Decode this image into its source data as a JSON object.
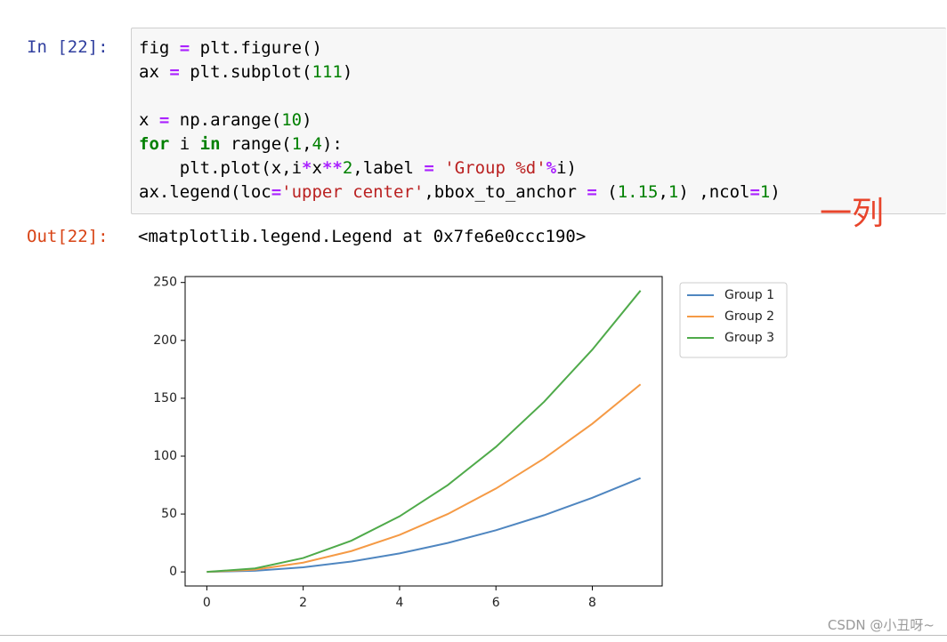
{
  "notebook": {
    "input_prompt": "In [22]:",
    "code": [
      [
        {
          "text": "fig ",
          "color": "#000000"
        },
        {
          "text": "=",
          "color": "#aa22ff",
          "weight": "bold"
        },
        {
          "text": " plt.figure()",
          "color": "#000000"
        }
      ],
      [
        {
          "text": "ax ",
          "color": "#000000"
        },
        {
          "text": "=",
          "color": "#aa22ff",
          "weight": "bold"
        },
        {
          "text": " plt.subplot(",
          "color": "#000000"
        },
        {
          "text": "111",
          "color": "#008000"
        },
        {
          "text": ")",
          "color": "#000000"
        }
      ],
      [],
      [
        {
          "text": "x ",
          "color": "#000000"
        },
        {
          "text": "=",
          "color": "#aa22ff",
          "weight": "bold"
        },
        {
          "text": " np.arange(",
          "color": "#000000"
        },
        {
          "text": "10",
          "color": "#008000"
        },
        {
          "text": ")",
          "color": "#000000"
        }
      ],
      [
        {
          "text": "for",
          "color": "#008000",
          "weight": "bold"
        },
        {
          "text": " i ",
          "color": "#000000"
        },
        {
          "text": "in",
          "color": "#008000",
          "weight": "bold"
        },
        {
          "text": " range(",
          "color": "#000000"
        },
        {
          "text": "1",
          "color": "#008000"
        },
        {
          "text": ",",
          "color": "#000000"
        },
        {
          "text": "4",
          "color": "#008000"
        },
        {
          "text": "):",
          "color": "#000000"
        }
      ],
      [
        {
          "text": "    plt.plot(x,i",
          "color": "#000000"
        },
        {
          "text": "*",
          "color": "#aa22ff",
          "weight": "bold"
        },
        {
          "text": "x",
          "color": "#000000"
        },
        {
          "text": "**",
          "color": "#aa22ff",
          "weight": "bold"
        },
        {
          "text": "2",
          "color": "#008000"
        },
        {
          "text": ",label ",
          "color": "#000000"
        },
        {
          "text": "=",
          "color": "#aa22ff",
          "weight": "bold"
        },
        {
          "text": " ",
          "color": "#000000"
        },
        {
          "text": "'Group %d'",
          "color": "#ba2121"
        },
        {
          "text": "%",
          "color": "#aa22ff",
          "weight": "bold"
        },
        {
          "text": "i)",
          "color": "#000000"
        }
      ],
      [
        {
          "text": "ax.legend(loc",
          "color": "#000000"
        },
        {
          "text": "=",
          "color": "#aa22ff",
          "weight": "bold"
        },
        {
          "text": "'upper center'",
          "color": "#ba2121"
        },
        {
          "text": ",bbox_to_anchor ",
          "color": "#000000"
        },
        {
          "text": "=",
          "color": "#aa22ff",
          "weight": "bold"
        },
        {
          "text": " (",
          "color": "#000000"
        },
        {
          "text": "1.15",
          "color": "#008000"
        },
        {
          "text": ",",
          "color": "#000000"
        },
        {
          "text": "1",
          "color": "#008000"
        },
        {
          "text": ") ,ncol",
          "color": "#000000"
        },
        {
          "text": "=",
          "color": "#aa22ff",
          "weight": "bold"
        },
        {
          "text": "1",
          "color": "#008000"
        },
        {
          "text": ")",
          "color": "#000000"
        }
      ]
    ],
    "annotation": "一列",
    "output_prompt": "Out[22]:",
    "output_text": "<matplotlib.legend.Legend at 0x7fe6e0ccc190>"
  },
  "chart_data": {
    "type": "line",
    "x": [
      0,
      1,
      2,
      3,
      4,
      5,
      6,
      7,
      8,
      9
    ],
    "series": [
      {
        "name": "Group 1",
        "color": "#4f86c0",
        "values": [
          0,
          1,
          4,
          9,
          16,
          25,
          36,
          49,
          64,
          81
        ]
      },
      {
        "name": "Group 2",
        "color": "#f59a45",
        "values": [
          0,
          2,
          8,
          18,
          32,
          50,
          72,
          98,
          128,
          162
        ]
      },
      {
        "name": "Group 3",
        "color": "#4faa4a",
        "values": [
          0,
          3,
          12,
          27,
          48,
          75,
          108,
          147,
          192,
          243
        ]
      }
    ],
    "xlim": [
      -0.45,
      9.45
    ],
    "ylim": [
      -12.15,
      255.15
    ],
    "xticks": [
      0,
      2,
      4,
      6,
      8
    ],
    "yticks": [
      0,
      50,
      100,
      150,
      200,
      250
    ],
    "grid": false,
    "legend": "outside-upper-right"
  },
  "watermark": "CSDN @小丑呀~"
}
